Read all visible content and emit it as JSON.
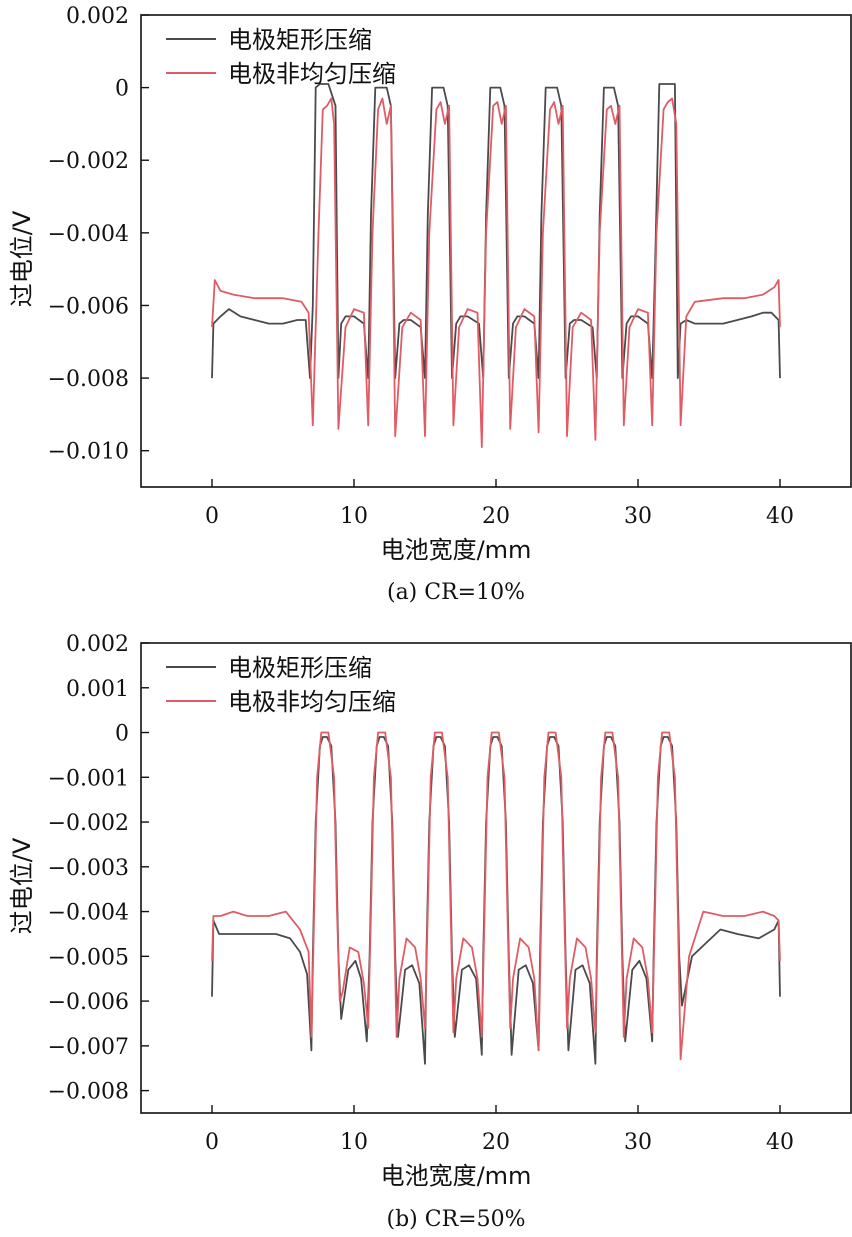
{
  "chart_data": [
    {
      "type": "line",
      "caption": "(a) CR=10%",
      "xlabel": "电池宽度/mm",
      "ylabel": "过电位/V",
      "xlim": [
        -5,
        45
      ],
      "ylim": [
        -0.011,
        0.002
      ],
      "xticks": [
        0,
        10,
        20,
        30,
        40
      ],
      "xtick_labels": [
        "0",
        "10",
        "20",
        "30",
        "40"
      ],
      "yticks": [
        0.002,
        0,
        -0.002,
        -0.004,
        -0.006,
        -0.008,
        -0.01
      ],
      "ytick_labels": [
        "0.002",
        "0",
        "−0.002",
        "−0.004",
        "−0.006",
        "−0.008",
        "−0.010"
      ],
      "legend": "top-left",
      "series": [
        {
          "name": "电极矩形压缩",
          "color": "#4a4a4a",
          "x": [
            0,
            0.1,
            0.6,
            1.2,
            2,
            3,
            4,
            5,
            6,
            6.6,
            6.9,
            7.1,
            7.3,
            7.6,
            8.2,
            8.7,
            8.9,
            9.1,
            9.4,
            10,
            10.7,
            11.0,
            11.2,
            11.5,
            12.3,
            12.6,
            12.9,
            13.2,
            13.5,
            14,
            14.7,
            15.0,
            15.2,
            15.5,
            16.3,
            16.6,
            16.9,
            17.2,
            17.5,
            18,
            18.8,
            19.1,
            19.3,
            19.6,
            20.3,
            20.6,
            20.9,
            21.2,
            21.5,
            22,
            22.7,
            23.0,
            23.2,
            23.5,
            24.3,
            24.6,
            24.9,
            25.2,
            25.5,
            26,
            26.8,
            27.1,
            27.3,
            27.6,
            28.3,
            28.6,
            28.9,
            29.2,
            29.5,
            30,
            30.7,
            31.0,
            31.2,
            31.5,
            32.2,
            32.6,
            32.8,
            33.0,
            33.4,
            34,
            35,
            36,
            37,
            38,
            38.8,
            39.4,
            39.9,
            40
          ],
          "y": [
            -0.008,
            -0.0065,
            -0.0063,
            -0.0061,
            -0.0063,
            -0.0064,
            -0.0065,
            -0.0065,
            -0.0064,
            -0.0064,
            -0.008,
            -0.006,
            0.0,
            0.0001,
            0.0001,
            -0.0005,
            -0.008,
            -0.0065,
            -0.0063,
            -0.0063,
            -0.0065,
            -0.008,
            -0.0035,
            0.0,
            0.0,
            -0.0005,
            -0.008,
            -0.0065,
            -0.0064,
            -0.0064,
            -0.0066,
            -0.008,
            -0.0035,
            0.0,
            0.0,
            -0.0005,
            -0.008,
            -0.0065,
            -0.0063,
            -0.0063,
            -0.0065,
            -0.008,
            -0.0035,
            0.0,
            0.0,
            -0.0005,
            -0.008,
            -0.0065,
            -0.0063,
            -0.0063,
            -0.0065,
            -0.008,
            -0.0035,
            0.0,
            0.0,
            -0.0005,
            -0.008,
            -0.0065,
            -0.0064,
            -0.0064,
            -0.0066,
            -0.008,
            -0.0035,
            0.0,
            0.0,
            -0.0005,
            -0.008,
            -0.0065,
            -0.0063,
            -0.0063,
            -0.0065,
            -0.008,
            -0.005,
            0.0001,
            0.0001,
            0.0001,
            -0.008,
            -0.0065,
            -0.0064,
            -0.0065,
            -0.0065,
            -0.0065,
            -0.0064,
            -0.0063,
            -0.0062,
            -0.0062,
            -0.0064,
            -0.008
          ]
        },
        {
          "name": "电极非均匀压缩",
          "color": "#e05c64",
          "x": [
            0,
            0.2,
            0.6,
            1.5,
            3,
            5,
            6.3,
            6.8,
            7.1,
            7.5,
            7.8,
            8.1,
            8.4,
            8.6,
            8.9,
            9.4,
            10,
            10.7,
            11.0,
            11.3,
            11.7,
            12.0,
            12.3,
            12.6,
            12.9,
            13.4,
            14,
            14.7,
            15.0,
            15.3,
            15.8,
            16.1,
            16.4,
            16.7,
            17.0,
            17.4,
            18,
            18.7,
            19.0,
            19.3,
            19.8,
            20.1,
            20.4,
            20.7,
            21.0,
            21.4,
            22,
            22.7,
            23.0,
            23.3,
            23.8,
            24.1,
            24.4,
            24.7,
            25.0,
            25.4,
            26,
            26.7,
            27.0,
            27.3,
            27.8,
            28.1,
            28.4,
            28.7,
            29.0,
            29.4,
            30,
            30.7,
            31.0,
            31.3,
            31.8,
            32.1,
            32.4,
            32.7,
            33.0,
            33.4,
            34,
            36,
            37.5,
            38.8,
            39.6,
            39.9,
            40
          ],
          "y": [
            -0.0066,
            -0.0053,
            -0.0056,
            -0.0057,
            -0.0058,
            -0.0058,
            -0.0059,
            -0.0062,
            -0.0093,
            -0.004,
            -0.0006,
            -0.0005,
            -0.0003,
            -0.001,
            -0.0094,
            -0.0066,
            -0.0061,
            -0.0062,
            -0.0093,
            -0.004,
            -0.0006,
            -0.0003,
            -0.001,
            -0.0005,
            -0.0096,
            -0.0066,
            -0.0062,
            -0.0064,
            -0.0096,
            -0.004,
            -0.0006,
            -0.0004,
            -0.001,
            -0.0005,
            -0.0093,
            -0.0066,
            -0.0061,
            -0.0062,
            -0.0099,
            -0.004,
            -0.0005,
            -0.0004,
            -0.001,
            -0.0005,
            -0.0094,
            -0.0066,
            -0.0061,
            -0.0063,
            -0.0095,
            -0.004,
            -0.0006,
            -0.0004,
            -0.001,
            -0.0005,
            -0.0096,
            -0.0066,
            -0.0062,
            -0.0064,
            -0.0097,
            -0.004,
            -0.0006,
            -0.0005,
            -0.001,
            -0.0005,
            -0.0093,
            -0.0066,
            -0.0061,
            -0.0062,
            -0.0093,
            -0.004,
            -0.0006,
            -0.0004,
            -0.0003,
            -0.001,
            -0.0093,
            -0.0063,
            -0.0059,
            -0.0058,
            -0.0058,
            -0.0057,
            -0.0055,
            -0.0053,
            -0.0066
          ]
        }
      ]
    },
    {
      "type": "line",
      "caption": "(b) CR=50%",
      "xlabel": "电池宽度/mm",
      "ylabel": "过电位/V",
      "xlim": [
        -5,
        45
      ],
      "ylim": [
        -0.0085,
        0.002
      ],
      "xticks": [
        0,
        10,
        20,
        30,
        40
      ],
      "xtick_labels": [
        "0",
        "10",
        "20",
        "30",
        "40"
      ],
      "yticks": [
        0.002,
        0.001,
        0,
        -0.001,
        -0.002,
        -0.003,
        -0.004,
        -0.005,
        -0.006,
        -0.007,
        -0.008
      ],
      "ytick_labels": [
        "0.002",
        "0.001",
        "0",
        "−0.001",
        "−0.002",
        "−0.003",
        "−0.004",
        "−0.005",
        "−0.006",
        "−0.007",
        "−0.008"
      ],
      "legend": "top-left",
      "series": [
        {
          "name": "电极矩形压缩",
          "color": "#4a4a4a",
          "x": [
            0,
            0.1,
            0.5,
            1.5,
            3,
            4.5,
            5.5,
            6.2,
            6.7,
            7.0,
            7.1,
            7.3,
            7.6,
            7.8,
            8.1,
            8.4,
            8.7,
            8.9,
            9.1,
            9.6,
            10.1,
            10.5,
            10.9,
            11.1,
            11.3,
            11.6,
            11.8,
            12.1,
            12.4,
            12.7,
            12.9,
            13.1,
            13.6,
            14.1,
            14.6,
            15.0,
            15.1,
            15.3,
            15.6,
            15.8,
            16.1,
            16.4,
            16.7,
            16.9,
            17.1,
            17.6,
            18.1,
            18.6,
            19.0,
            19.1,
            19.3,
            19.6,
            19.8,
            20.1,
            20.4,
            20.7,
            20.9,
            21.1,
            21.6,
            22.1,
            22.6,
            23.0,
            23.1,
            23.3,
            23.6,
            23.8,
            24.1,
            24.4,
            24.7,
            24.9,
            25.1,
            25.6,
            26.1,
            26.6,
            27.0,
            27.1,
            27.3,
            27.6,
            27.8,
            28.1,
            28.4,
            28.7,
            28.9,
            29.1,
            29.6,
            30.1,
            30.6,
            31.0,
            31.1,
            31.3,
            31.6,
            31.8,
            32.1,
            32.4,
            32.7,
            32.9,
            33.1,
            33.8,
            34.8,
            35.8,
            37,
            38.5,
            39.6,
            39.9,
            40
          ],
          "y": [
            -0.0059,
            -0.0042,
            -0.0045,
            -0.0045,
            -0.0045,
            -0.0045,
            -0.0046,
            -0.0049,
            -0.0054,
            -0.0071,
            -0.005,
            -0.002,
            -0.0003,
            -0.0001,
            -0.0001,
            -0.0003,
            -0.002,
            -0.005,
            -0.0064,
            -0.0053,
            -0.0051,
            -0.0055,
            -0.0069,
            -0.005,
            -0.002,
            -0.0003,
            -0.0001,
            -0.0001,
            -0.0003,
            -0.002,
            -0.005,
            -0.0068,
            -0.0053,
            -0.0052,
            -0.0056,
            -0.0074,
            -0.005,
            -0.002,
            -0.0003,
            -0.0001,
            -0.0001,
            -0.0003,
            -0.002,
            -0.005,
            -0.0068,
            -0.0053,
            -0.0052,
            -0.0055,
            -0.0072,
            -0.005,
            -0.002,
            -0.0003,
            -0.0001,
            -0.0001,
            -0.0003,
            -0.002,
            -0.005,
            -0.0072,
            -0.0053,
            -0.0052,
            -0.0056,
            -0.0071,
            -0.005,
            -0.002,
            -0.0003,
            -0.0001,
            -0.0001,
            -0.0003,
            -0.002,
            -0.005,
            -0.0071,
            -0.0053,
            -0.0052,
            -0.0056,
            -0.0074,
            -0.005,
            -0.002,
            -0.0003,
            -0.0001,
            -0.0001,
            -0.0003,
            -0.002,
            -0.005,
            -0.0069,
            -0.0053,
            -0.0051,
            -0.0055,
            -0.0069,
            -0.005,
            -0.002,
            -0.0003,
            -0.0001,
            -0.0001,
            -0.0003,
            -0.002,
            -0.005,
            -0.0061,
            -0.005,
            -0.0047,
            -0.0044,
            -0.0045,
            -0.0046,
            -0.0044,
            -0.0042,
            -0.0059
          ]
        },
        {
          "name": "电极非均匀压缩",
          "color": "#e05c64",
          "x": [
            0,
            0.1,
            0.6,
            1.5,
            2.5,
            4,
            5.2,
            6.2,
            6.8,
            7.0,
            7.2,
            7.4,
            7.7,
            8.0,
            8.2,
            8.6,
            8.8,
            9.0,
            9.2,
            9.7,
            10.3,
            10.7,
            11.0,
            11.2,
            11.4,
            11.7,
            12.0,
            12.2,
            12.6,
            12.8,
            13.0,
            13.2,
            13.7,
            14.3,
            14.7,
            15.0,
            15.2,
            15.4,
            15.7,
            16.0,
            16.2,
            16.6,
            16.8,
            17.0,
            17.2,
            17.7,
            18.3,
            18.7,
            19.0,
            19.2,
            19.4,
            19.7,
            20.0,
            20.2,
            20.6,
            20.8,
            21.0,
            21.2,
            21.7,
            22.3,
            22.7,
            23.0,
            23.2,
            23.4,
            23.7,
            24.0,
            24.2,
            24.6,
            24.8,
            25.0,
            25.2,
            25.7,
            26.3,
            26.7,
            27.0,
            27.2,
            27.4,
            27.7,
            28.0,
            28.2,
            28.6,
            28.8,
            29.0,
            29.2,
            29.7,
            30.3,
            30.7,
            31.0,
            31.2,
            31.4,
            31.7,
            32.0,
            32.2,
            32.6,
            32.8,
            33.0,
            33.6,
            34.6,
            36,
            37.5,
            38.8,
            39.6,
            39.9,
            40
          ],
          "y": [
            -0.0051,
            -0.0041,
            -0.0041,
            -0.004,
            -0.0041,
            -0.0041,
            -0.004,
            -0.0044,
            -0.0049,
            -0.0068,
            -0.004,
            -0.001,
            0.0,
            0.0,
            0.0,
            -0.001,
            -0.004,
            -0.006,
            -0.0058,
            -0.0048,
            -0.0049,
            -0.0056,
            -0.0066,
            -0.004,
            -0.001,
            0.0,
            0.0,
            0.0,
            -0.001,
            -0.004,
            -0.0068,
            -0.0055,
            -0.0046,
            -0.0048,
            -0.0055,
            -0.0066,
            -0.004,
            -0.001,
            0.0,
            0.0,
            0.0,
            -0.001,
            -0.004,
            -0.0067,
            -0.0055,
            -0.0046,
            -0.0048,
            -0.0055,
            -0.0068,
            -0.004,
            -0.001,
            0.0,
            0.0,
            0.0,
            -0.001,
            -0.004,
            -0.0066,
            -0.0055,
            -0.0046,
            -0.0048,
            -0.0055,
            -0.0071,
            -0.004,
            -0.001,
            0.0,
            0.0,
            0.0,
            -0.001,
            -0.004,
            -0.0066,
            -0.0055,
            -0.0046,
            -0.0048,
            -0.0055,
            -0.0067,
            -0.004,
            -0.001,
            0.0,
            0.0,
            0.0,
            -0.001,
            -0.004,
            -0.0068,
            -0.0055,
            -0.0046,
            -0.0048,
            -0.0055,
            -0.0067,
            -0.004,
            -0.001,
            0.0,
            0.0,
            0.0,
            -0.001,
            -0.004,
            -0.0073,
            -0.005,
            -0.004,
            -0.0041,
            -0.0041,
            -0.004,
            -0.0041,
            -0.0042,
            -0.0051
          ]
        }
      ]
    }
  ]
}
